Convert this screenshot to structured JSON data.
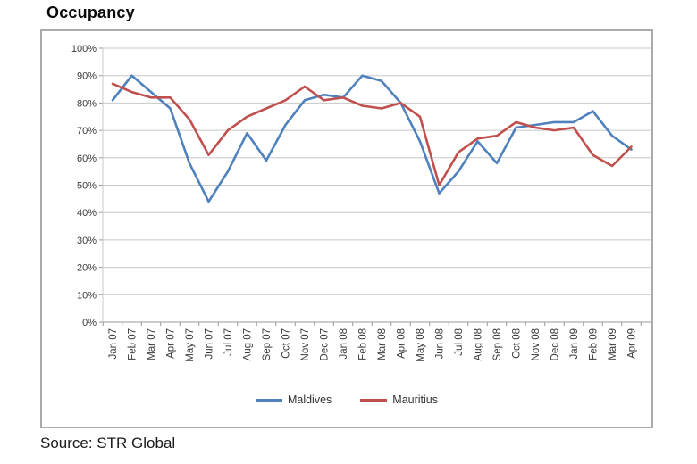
{
  "title": "Occupancy",
  "source": "Source: STR Global",
  "chart_data": {
    "type": "line",
    "title": "Occupancy",
    "categories": [
      "Jan 07",
      "Feb 07",
      "Mar 07",
      "Apr 07",
      "May 07",
      "Jun 07",
      "Jul 07",
      "Aug 07",
      "Sep 07",
      "Oct 07",
      "Nov 07",
      "Dec 07",
      "Jan 08",
      "Feb 08",
      "Mar 08",
      "Apr 08",
      "May 08",
      "Jun 08",
      "Jul 08",
      "Aug 08",
      "Sep 08",
      "Oct 08",
      "Nov 08",
      "Dec 08",
      "Jan 09",
      "Feb 09",
      "Mar 09",
      "Apr 09"
    ],
    "series": [
      {
        "name": "Maldives",
        "color": "#4F81BD",
        "values": [
          81,
          90,
          84,
          78,
          58,
          44,
          55,
          69,
          59,
          72,
          81,
          83,
          82,
          90,
          88,
          80,
          66,
          47,
          55,
          66,
          58,
          71,
          72,
          73,
          73,
          77,
          68,
          63
        ]
      },
      {
        "name": "Mauritius",
        "color": "#C0504D",
        "values": [
          87,
          84,
          82,
          82,
          74,
          61,
          70,
          75,
          78,
          81,
          86,
          81,
          82,
          79,
          78,
          80,
          75,
          50,
          62,
          67,
          68,
          73,
          71,
          70,
          71,
          61,
          57,
          64
        ]
      }
    ],
    "xlabel": "",
    "ylabel": "",
    "ylim": [
      0,
      100
    ],
    "y_tick_labels": [
      "100%",
      "90%",
      "80%",
      "70%",
      "60%",
      "50%",
      "40%",
      "30%",
      "20%",
      "10%",
      "0%"
    ],
    "grid": true,
    "legend_position": "bottom",
    "grid_color": "#c8c8c8",
    "axis_color": "#999999",
    "tick_label_color": "#3a3a3a"
  }
}
